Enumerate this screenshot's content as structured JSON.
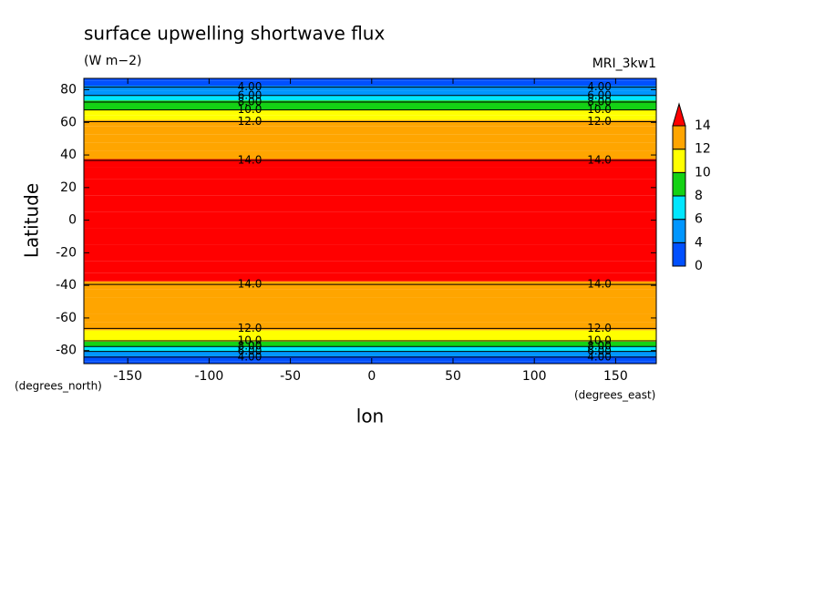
{
  "chart_data": {
    "type": "zonal-contour",
    "title": "surface upwelling shortwave flux",
    "subtitle": "(W m−2)",
    "model": "MRI_3kw1",
    "x_label": "lon",
    "y_label": "Latitude",
    "x_units": "(degrees_east)",
    "y_units": "(degrees_north)",
    "lat": [
      -88,
      -85,
      -82,
      -79,
      -76,
      -73,
      -70,
      -65,
      -60,
      -55,
      -50,
      -45,
      -40,
      -35,
      -30,
      -20,
      -10,
      0,
      10,
      20,
      30,
      35,
      40,
      45,
      50,
      55,
      60,
      63,
      66,
      69,
      72,
      75,
      78,
      81,
      84,
      87
    ],
    "values": [
      2.5,
      3.5,
      5,
      7,
      9,
      10.5,
      11.5,
      12.2,
      12.6,
      13,
      13.4,
      13.7,
      13.95,
      14.4,
      14.8,
      15,
      14.8,
      14.4,
      14.8,
      15,
      14.6,
      14.1,
      13.8,
      13.4,
      13,
      12.6,
      12.1,
      11.4,
      10.6,
      9.5,
      8.2,
      6.8,
      5.2,
      4.2,
      3.2,
      2.5
    ],
    "contour_levels": [
      {
        "value": 4,
        "label": "4.00"
      },
      {
        "value": 6,
        "label": "6.00"
      },
      {
        "value": 8,
        "label": "8.00"
      },
      {
        "value": 10,
        "label": "10.0"
      },
      {
        "value": 12,
        "label": "12.0"
      },
      {
        "value": 14,
        "label": "14.0"
      }
    ],
    "colorbar": {
      "levels": [
        0,
        4,
        6,
        8,
        10,
        12,
        14
      ],
      "colors": [
        "#0050ff",
        "#0096ff",
        "#00e6ff",
        "#14d214",
        "#ffff00",
        "#ffa500"
      ],
      "extend_color": "#ff0000"
    },
    "xlim": [
      -177,
      175
    ],
    "ylim": [
      -88,
      87
    ],
    "xticks": [
      -150,
      -100,
      -50,
      0,
      50,
      100,
      150
    ],
    "yticks": [
      -80,
      -60,
      -40,
      -20,
      0,
      20,
      40,
      60,
      80
    ]
  }
}
